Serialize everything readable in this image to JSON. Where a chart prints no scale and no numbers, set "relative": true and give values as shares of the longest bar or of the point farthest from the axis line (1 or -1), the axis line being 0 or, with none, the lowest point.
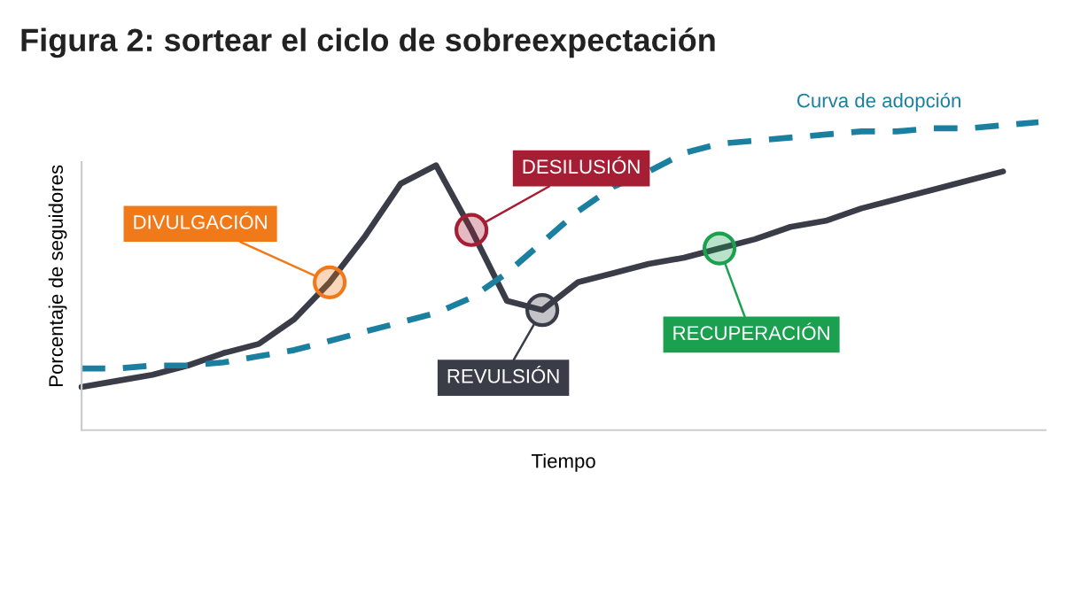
{
  "chart_data": {
    "type": "line",
    "title": "Figura 2: sortear el ciclo de sobreexpectación",
    "xlabel": "Tiempo",
    "ylabel": "Porcentaje de seguidores",
    "relative": true,
    "grid": false,
    "legend": false,
    "marker": "none",
    "categories": [
      null,
      null,
      null,
      null,
      null,
      null,
      null,
      null,
      null,
      null,
      null,
      null,
      null,
      null,
      null,
      null,
      null,
      null,
      null,
      null,
      null,
      null,
      null,
      null,
      null,
      null,
      null,
      null
    ],
    "series": [
      {
        "color": "#3a3d48",
        "line_style": "solid",
        "values": [
          0.14,
          0.16,
          0.18,
          0.21,
          0.25,
          0.28,
          0.36,
          0.48,
          0.63,
          0.8,
          0.86,
          0.65,
          0.42,
          0.39,
          0.48,
          0.51,
          0.54,
          0.56,
          0.59,
          0.62,
          0.66,
          0.68,
          0.72,
          0.75,
          0.78,
          0.81,
          0.84,
          null
        ]
      },
      {
        "name": "Curva de adopción",
        "color": "#1b7fa0",
        "line_style": "dashed",
        "values": [
          0.2,
          0.2,
          0.21,
          0.21,
          0.22,
          0.24,
          0.26,
          0.29,
          0.32,
          0.35,
          0.38,
          0.43,
          0.51,
          0.61,
          0.71,
          0.79,
          0.84,
          0.9,
          0.93,
          0.94,
          0.95,
          0.96,
          0.97,
          0.97,
          0.98,
          0.98,
          0.99,
          1.0
        ]
      }
    ],
    "annotations": [
      "DIVULGACIÓN",
      "DESILUSIÓN",
      "REVULSIÓN",
      "RECUPERACIÓN"
    ]
  }
}
